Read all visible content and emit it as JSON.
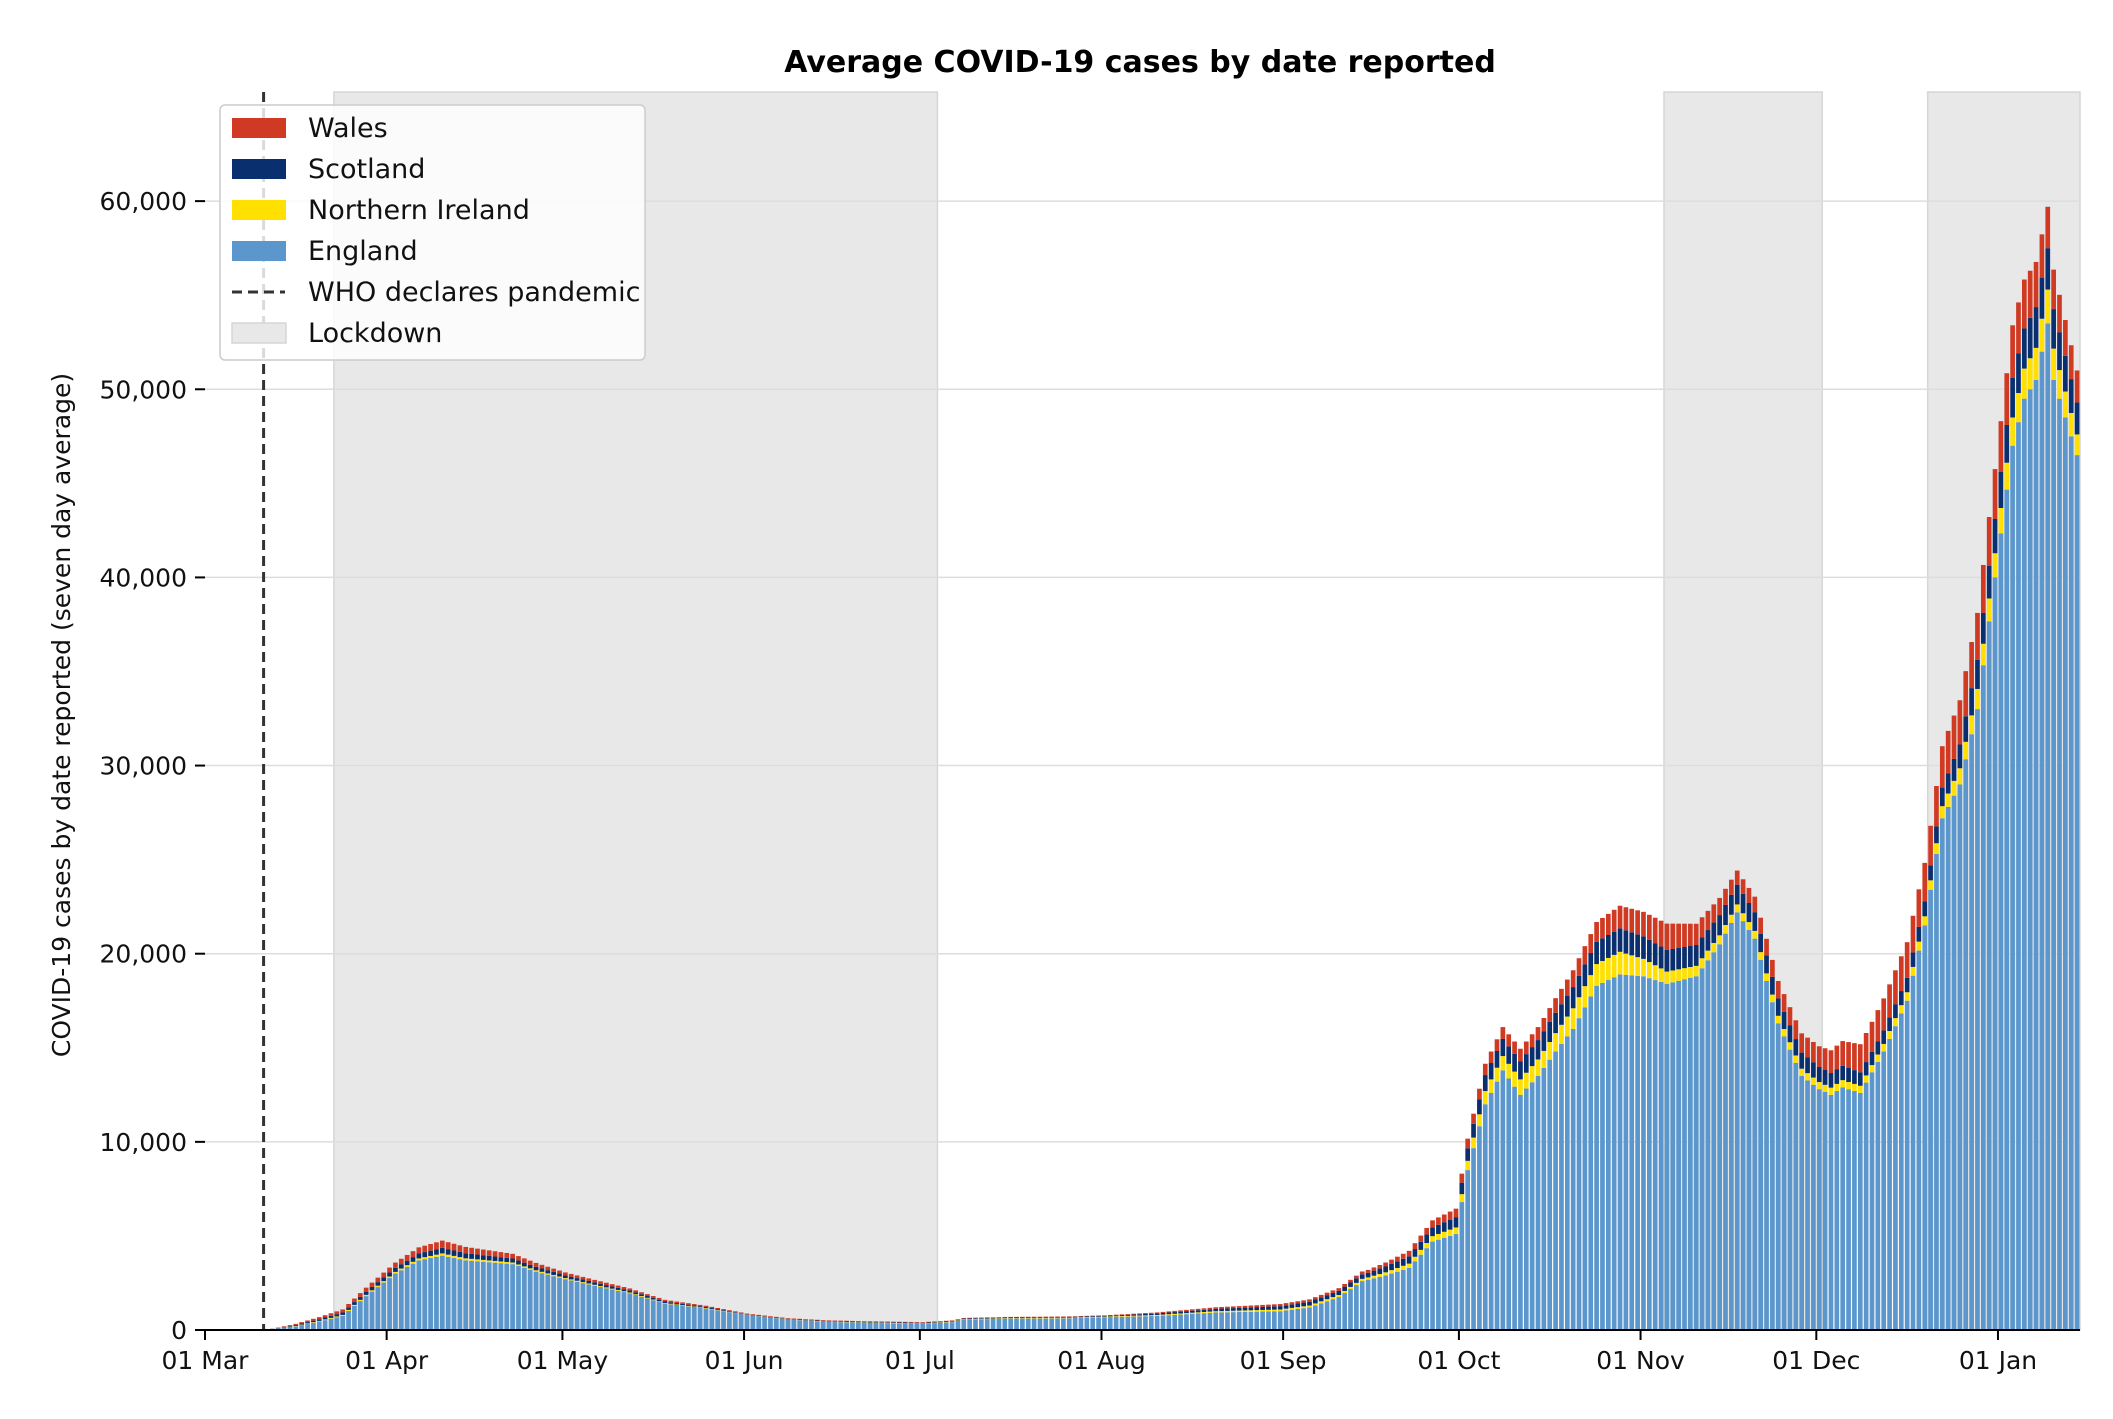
{
  "chart_data": {
    "type": "bar",
    "stacked": true,
    "title": "Average COVID-19 cases by date reported",
    "xlabel": "",
    "ylabel": "COVID-19 cases by date reported (seven day average)",
    "ylim": [
      0,
      65800
    ],
    "yticks": [
      0,
      10000,
      20000,
      30000,
      40000,
      50000,
      60000
    ],
    "ytick_labels": [
      "0",
      "10,000",
      "20,000",
      "30,000",
      "40,000",
      "50,000",
      "60,000"
    ],
    "xlim": [
      "2020-03-01",
      "2021-01-15"
    ],
    "xticks": [
      "2020-03-01",
      "2020-04-01",
      "2020-05-01",
      "2020-06-01",
      "2020-07-01",
      "2020-08-01",
      "2020-09-01",
      "2020-10-01",
      "2020-11-01",
      "2020-12-01",
      "2021-01-01"
    ],
    "xtick_labels": [
      "01 Mar",
      "01 Apr",
      "01 May",
      "01 Jun",
      "01 Jul",
      "01 Aug",
      "01 Sep",
      "01 Oct",
      "01 Nov",
      "01 Dec",
      "01 Jan"
    ],
    "grid": "horizontal",
    "legend_position": "top-left",
    "colors": {
      "England": "#5b97cd",
      "Northern Ireland": "#ffe000",
      "Scotland": "#0a2f6e",
      "Wales": "#d03a22",
      "pandemic_line": "#333333",
      "lockdown": "#e8e8e8"
    },
    "series_order": [
      "England",
      "Northern Ireland",
      "Scotland",
      "Wales"
    ],
    "legend": [
      {
        "label": "Wales",
        "kind": "patch",
        "color": "#d03a22"
      },
      {
        "label": "Scotland",
        "kind": "patch",
        "color": "#0a2f6e"
      },
      {
        "label": "Northern Ireland",
        "kind": "patch",
        "color": "#ffe000"
      },
      {
        "label": "England",
        "kind": "patch",
        "color": "#5b97cd"
      },
      {
        "label": "WHO declares pandemic",
        "kind": "dashed-line",
        "color": "#333333"
      },
      {
        "label": "Lockdown",
        "kind": "patch",
        "color": "#e8e8e8"
      }
    ],
    "event_lines": [
      {
        "name": "WHO declares pandemic",
        "date": "2020-03-11"
      }
    ],
    "lockdowns": [
      {
        "start": "2020-03-23",
        "end": "2020-07-04"
      },
      {
        "start": "2020-11-05",
        "end": "2020-12-02"
      },
      {
        "start": "2020-12-20",
        "end": "2021-01-15"
      }
    ],
    "date_start": "2020-03-12",
    "england_breakpoints": [
      [
        "2020-03-12",
        50
      ],
      [
        "2020-03-16",
        200
      ],
      [
        "2020-03-20",
        450
      ],
      [
        "2020-03-24",
        750
      ],
      [
        "2020-03-28",
        1800
      ],
      [
        "2020-04-02",
        3000
      ],
      [
        "2020-04-06",
        3700
      ],
      [
        "2020-04-10",
        3950
      ],
      [
        "2020-04-14",
        3700
      ],
      [
        "2020-04-18",
        3600
      ],
      [
        "2020-04-22",
        3500
      ],
      [
        "2020-04-26",
        3100
      ],
      [
        "2020-05-01",
        2700
      ],
      [
        "2020-05-06",
        2350
      ],
      [
        "2020-05-12",
        1950
      ],
      [
        "2020-05-18",
        1400
      ],
      [
        "2020-05-25",
        1150
      ],
      [
        "2020-06-01",
        800
      ],
      [
        "2020-06-08",
        550
      ],
      [
        "2020-06-15",
        430
      ],
      [
        "2020-06-22",
        380
      ],
      [
        "2020-07-01",
        330
      ],
      [
        "2020-07-06",
        420
      ],
      [
        "2020-07-08",
        550
      ],
      [
        "2020-07-15",
        600
      ],
      [
        "2020-07-25",
        620
      ],
      [
        "2020-08-01",
        680
      ],
      [
        "2020-08-10",
        750
      ],
      [
        "2020-08-20",
        930
      ],
      [
        "2020-08-31",
        1000
      ],
      [
        "2020-09-05",
        1200
      ],
      [
        "2020-09-10",
        1750
      ],
      [
        "2020-09-14",
        2600
      ],
      [
        "2020-09-18",
        2900
      ],
      [
        "2020-09-22",
        3300
      ],
      [
        "2020-09-26",
        4700
      ],
      [
        "2020-09-30",
        5100
      ],
      [
        "2020-10-02",
        8500
      ],
      [
        "2020-10-05",
        12000
      ],
      [
        "2020-10-08",
        13800
      ],
      [
        "2020-10-11",
        12500
      ],
      [
        "2020-10-14",
        13500
      ],
      [
        "2020-10-17",
        14800
      ],
      [
        "2020-10-20",
        16000
      ],
      [
        "2020-10-24",
        18300
      ],
      [
        "2020-10-28",
        18900
      ],
      [
        "2020-11-01",
        18800
      ],
      [
        "2020-11-05",
        18400
      ],
      [
        "2020-11-10",
        18800
      ],
      [
        "2020-11-14",
        20500
      ],
      [
        "2020-11-17",
        22200
      ],
      [
        "2020-11-20",
        20800
      ],
      [
        "2020-11-24",
        16300
      ],
      [
        "2020-11-28",
        13500
      ],
      [
        "2020-12-01",
        12800
      ],
      [
        "2020-12-03",
        12500
      ],
      [
        "2020-12-05",
        12900
      ],
      [
        "2020-12-08",
        12600
      ],
      [
        "2020-12-12",
        14800
      ],
      [
        "2020-12-16",
        17500
      ],
      [
        "2020-12-19",
        21500
      ],
      [
        "2020-12-22",
        27200
      ],
      [
        "2020-12-25",
        29000
      ],
      [
        "2020-12-28",
        33000
      ],
      [
        "2020-12-31",
        40000
      ],
      [
        "2021-01-03",
        47000
      ],
      [
        "2021-01-05",
        49500
      ],
      [
        "2021-01-07",
        50500
      ],
      [
        "2021-01-09",
        53500
      ],
      [
        "2021-01-10",
        50500
      ],
      [
        "2021-01-12",
        48500
      ],
      [
        "2021-01-14",
        46500
      ]
    ],
    "ni_breakpoints": [
      [
        "2020-03-12",
        2
      ],
      [
        "2020-04-10",
        120
      ],
      [
        "2020-05-01",
        60
      ],
      [
        "2020-06-01",
        10
      ],
      [
        "2020-08-01",
        30
      ],
      [
        "2020-09-15",
        120
      ],
      [
        "2020-09-30",
        350
      ],
      [
        "2020-10-05",
        700
      ],
      [
        "2020-10-15",
        900
      ],
      [
        "2020-10-20",
        1100
      ],
      [
        "2020-10-28",
        1200
      ],
      [
        "2020-11-05",
        650
      ],
      [
        "2020-11-17",
        420
      ],
      [
        "2020-12-01",
        380
      ],
      [
        "2020-12-10",
        380
      ],
      [
        "2020-12-20",
        500
      ],
      [
        "2021-01-03",
        1500
      ],
      [
        "2021-01-09",
        1800
      ],
      [
        "2021-01-14",
        1100
      ]
    ],
    "scotland_breakpoints": [
      [
        "2020-03-12",
        10
      ],
      [
        "2020-04-10",
        300
      ],
      [
        "2020-05-01",
        150
      ],
      [
        "2020-06-01",
        25
      ],
      [
        "2020-08-01",
        40
      ],
      [
        "2020-09-15",
        250
      ],
      [
        "2020-09-30",
        550
      ],
      [
        "2020-10-05",
        850
      ],
      [
        "2020-10-15",
        1050
      ],
      [
        "2020-10-28",
        1250
      ],
      [
        "2020-11-05",
        1150
      ],
      [
        "2020-11-17",
        1050
      ],
      [
        "2020-12-01",
        800
      ],
      [
        "2020-12-10",
        700
      ],
      [
        "2020-12-20",
        800
      ],
      [
        "2021-01-03",
        2100
      ],
      [
        "2021-01-09",
        2200
      ],
      [
        "2021-01-14",
        1700
      ]
    ],
    "wales_breakpoints": [
      [
        "2020-03-12",
        8
      ],
      [
        "2020-04-10",
        380
      ],
      [
        "2020-05-01",
        150
      ],
      [
        "2020-06-01",
        40
      ],
      [
        "2020-08-01",
        30
      ],
      [
        "2020-09-15",
        150
      ],
      [
        "2020-09-30",
        450
      ],
      [
        "2020-10-05",
        600
      ],
      [
        "2020-10-15",
        700
      ],
      [
        "2020-10-28",
        1200
      ],
      [
        "2020-11-05",
        1400
      ],
      [
        "2020-11-17",
        750
      ],
      [
        "2020-12-01",
        1100
      ],
      [
        "2020-12-10",
        1600
      ],
      [
        "2020-12-20",
        2100
      ],
      [
        "2021-01-03",
        2800
      ],
      [
        "2021-01-09",
        2200
      ],
      [
        "2021-01-14",
        1700
      ]
    ]
  }
}
